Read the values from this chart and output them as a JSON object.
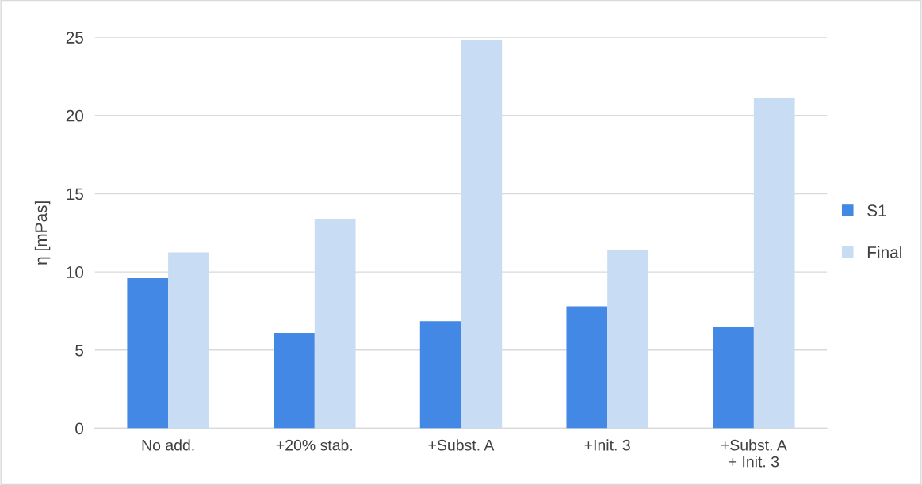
{
  "chart_data": {
    "type": "bar",
    "ylabel": "η [mPas]",
    "categories": [
      "No add.",
      "+20% stab.",
      "+Subst. A",
      "+Init. 3",
      "+Subst. A\n+ Init. 3"
    ],
    "series": [
      {
        "name": "S1",
        "color": "#4288e4",
        "values": [
          9.6,
          6.1,
          6.85,
          7.8,
          6.5
        ]
      },
      {
        "name": "Final",
        "color": "#c8dcf4",
        "values": [
          11.25,
          13.4,
          24.8,
          11.4,
          21.1
        ]
      }
    ],
    "ylim": [
      0,
      25
    ],
    "yticks": [
      0,
      5,
      10,
      15,
      20,
      25
    ],
    "grid": "y",
    "legend": "right"
  }
}
